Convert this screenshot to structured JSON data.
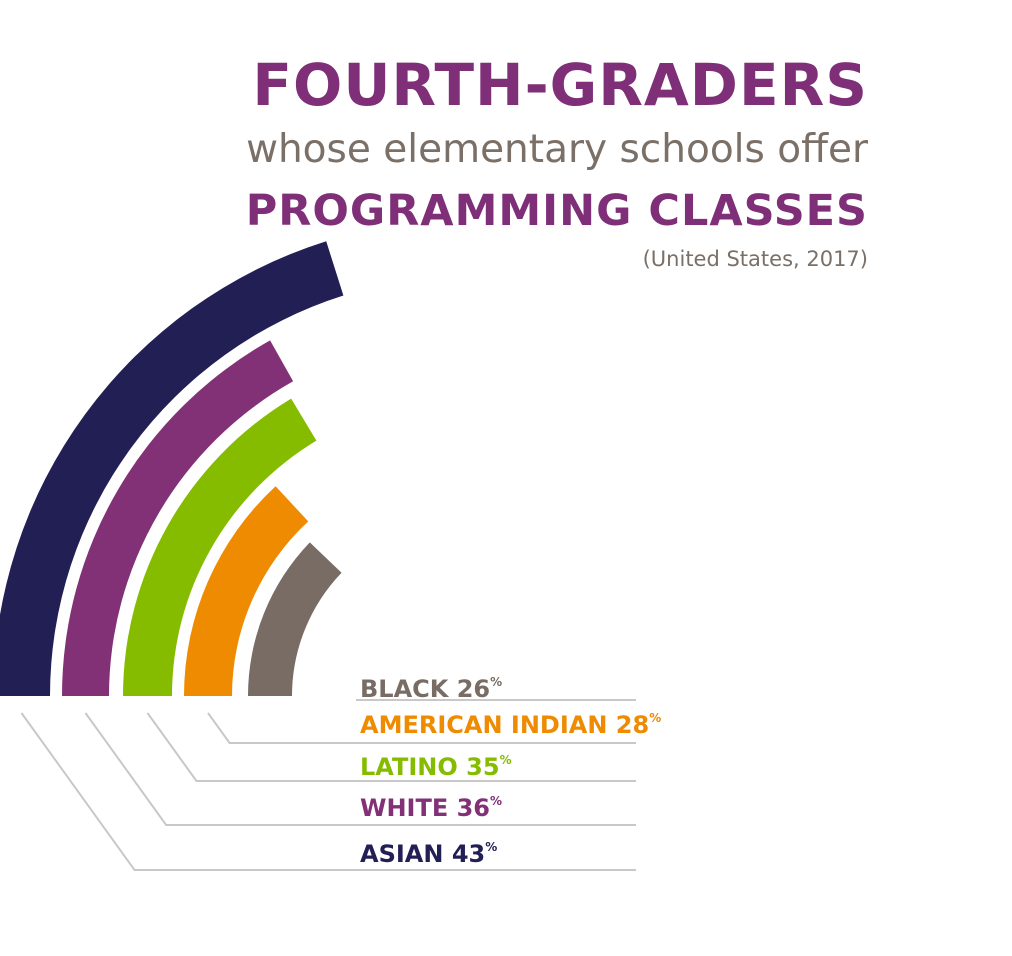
{
  "header": {
    "title": "FOURTH-GRADERS",
    "subtitle": "whose elementary schools offer",
    "subtitle_emphasis": "PROGRAMMING CLASSES",
    "note": "(United States, 2017)"
  },
  "colors": {
    "title_accent": "#7f2f78",
    "subtitle_gray": "#7a7068",
    "leader_line": "#c8c8c8"
  },
  "chart_data": {
    "type": "radial-bar",
    "title": "FOURTH-GRADERS whose elementary schools offer PROGRAMMING CLASSES",
    "note": "(United States, 2017)",
    "unit": "%",
    "series": [
      {
        "name": "BLACK",
        "value": 26,
        "value_label": "26",
        "color": "#786c64"
      },
      {
        "name": "AMERICAN INDIAN",
        "value": 28,
        "value_label": "28",
        "color": "#ee8b00"
      },
      {
        "name": "LATINO",
        "value": 35,
        "value_label": "35",
        "color": "#86bc00"
      },
      {
        "name": "WHITE",
        "value": 36,
        "value_label": "36",
        "color": "#823177"
      },
      {
        "name": "ASIAN",
        "value": 43,
        "value_label": "43",
        "color": "#221f55"
      }
    ],
    "percent_sign": "%"
  }
}
